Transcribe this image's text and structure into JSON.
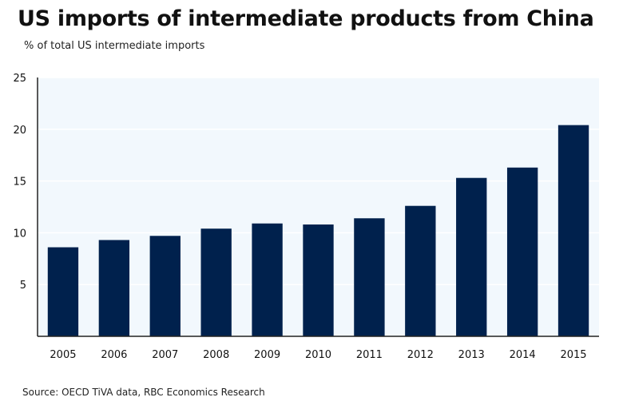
{
  "chart_data": {
    "type": "bar",
    "title": "US imports of intermediate products from China",
    "subtitle": "% of total US intermediate imports",
    "categories": [
      "2005",
      "2006",
      "2007",
      "2008",
      "2009",
      "2010",
      "2011",
      "2012",
      "2013",
      "2014",
      "2015"
    ],
    "values": [
      8.6,
      9.3,
      9.7,
      10.4,
      10.9,
      10.8,
      11.4,
      12.6,
      15.3,
      16.3,
      20.4
    ],
    "ylim": [
      0,
      25
    ],
    "yticks": [
      5,
      10,
      15,
      20,
      25
    ],
    "xlabel": "",
    "ylabel": "",
    "grid": true,
    "legend": "none",
    "source": "Source: OECD TiVA data, RBC Economics Research",
    "colors": {
      "bar": "#00214d",
      "plot_background": "#f2f8fd",
      "gridline": "#ffffff",
      "axis": "#222222"
    }
  }
}
